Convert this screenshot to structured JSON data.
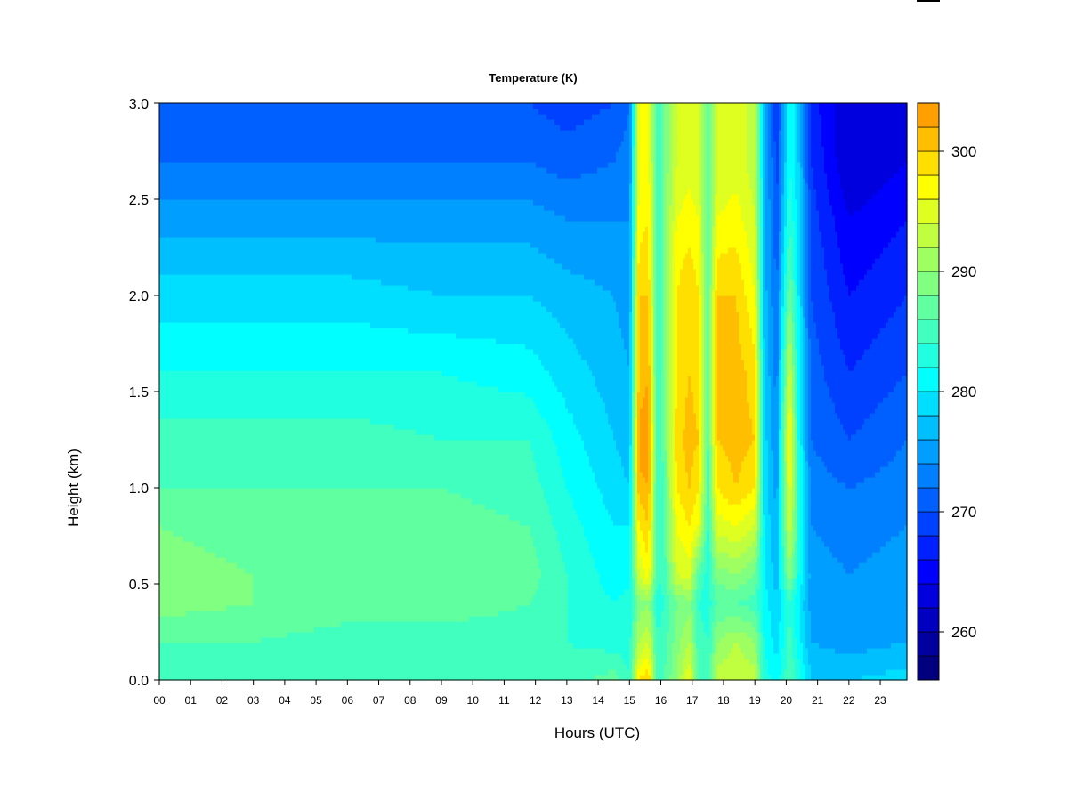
{
  "chart_data": {
    "type": "heatmap",
    "title": "Temperature (K)",
    "xlabel": "Hours (UTC)",
    "ylabel": "Height (km)",
    "x_ticks": [
      "00",
      "01",
      "02",
      "03",
      "04",
      "05",
      "06",
      "07",
      "08",
      "09",
      "10",
      "11",
      "12",
      "13",
      "14",
      "15",
      "16",
      "17",
      "18",
      "19",
      "20",
      "21",
      "22",
      "23"
    ],
    "x_range_hours": [
      0,
      23.85
    ],
    "y_ticks": [
      0.0,
      0.5,
      1.0,
      1.5,
      2.0,
      2.5,
      3.0
    ],
    "y_tick_labels": [
      "0.0",
      "0.5",
      "1.0",
      "1.5",
      "2.0",
      "2.5",
      "3.0"
    ],
    "ylim": [
      0.0,
      3.0
    ],
    "colorbar": {
      "range": [
        256,
        304
      ],
      "level_step": 2,
      "ticks": [
        260,
        270,
        280,
        290,
        300
      ],
      "tick_labels": [
        "260",
        "270",
        "280",
        "290",
        "300"
      ],
      "colors": [
        "#00007f",
        "#00009f",
        "#0000bf",
        "#0000df",
        "#0000ff",
        "#0020ff",
        "#0040ff",
        "#0060ff",
        "#0080ff",
        "#009fff",
        "#00bfff",
        "#00dfff",
        "#00ffff",
        "#20ffdf",
        "#40ffbf",
        "#60ff9f",
        "#80ff80",
        "#9fff60",
        "#bfff40",
        "#dfff20",
        "#ffff00",
        "#ffdf00",
        "#ffbf00",
        "#ff9f00",
        "#ff8000",
        "#ff6000",
        "#ff4000",
        "#ff2000",
        "#ff0000",
        "#df0000",
        "#bf0000",
        "#9f0000",
        "#7f0000"
      ]
    },
    "profile_heights_km": [
      0.0,
      0.2,
      0.4,
      0.55,
      0.8,
      1.0,
      1.25,
      1.6,
      2.0,
      2.4,
      2.7,
      3.0
    ],
    "profiles_K": [
      {
        "hour": 0.0,
        "values_K": [
          285,
          286,
          289,
          289,
          288,
          286,
          285,
          282,
          279,
          275,
          272,
          270
        ]
      },
      {
        "hour": 3.0,
        "values_K": [
          285,
          286,
          288,
          288,
          287,
          286,
          285,
          282,
          279,
          275,
          272,
          270
        ]
      },
      {
        "hour": 6.0,
        "values_K": [
          285,
          285,
          287,
          288,
          287,
          286,
          285,
          282,
          279,
          275,
          272,
          270
        ]
      },
      {
        "hour": 9.0,
        "values_K": [
          284,
          285,
          287,
          288,
          287,
          286,
          284,
          282,
          278,
          275,
          272,
          270
        ]
      },
      {
        "hour": 11.8,
        "values_K": [
          284,
          285,
          286,
          287,
          286,
          285,
          284,
          281,
          278,
          275,
          272,
          270
        ]
      },
      {
        "hour": 13.0,
        "values_K": [
          285,
          284,
          284,
          284,
          283,
          282,
          281,
          279,
          277,
          274,
          271,
          269
        ]
      },
      {
        "hour": 14.5,
        "values_K": [
          287,
          283,
          282,
          281,
          280,
          279,
          278,
          277,
          276,
          274,
          272,
          270
        ]
      },
      {
        "hour": 15.0,
        "values_K": [
          284,
          283,
          283,
          281,
          280,
          278,
          277,
          276,
          275,
          274,
          273,
          272
        ]
      },
      {
        "hour": 15.3,
        "values_K": [
          298,
          292,
          289,
          294,
          298,
          301,
          303,
          300,
          300,
          297,
          296,
          296
        ]
      },
      {
        "hour": 15.6,
        "values_K": [
          300,
          294,
          290,
          297,
          300,
          302,
          304,
          302,
          300,
          298,
          297,
          297
        ]
      },
      {
        "hour": 15.9,
        "values_K": [
          285,
          284,
          283,
          284,
          284,
          284,
          284,
          284,
          284,
          284,
          284,
          284
        ]
      },
      {
        "hour": 16.1,
        "values_K": [
          286,
          285,
          284,
          285,
          285,
          286,
          287,
          288,
          288,
          288,
          288,
          288
        ]
      },
      {
        "hour": 16.5,
        "values_K": [
          290,
          289,
          288,
          294,
          296,
          298,
          299,
          298,
          298,
          296,
          294,
          294
        ]
      },
      {
        "hour": 16.9,
        "values_K": [
          296,
          292,
          289,
          295,
          298,
          300,
          301,
          300,
          300,
          297,
          295,
          295
        ]
      },
      {
        "hour": 17.2,
        "values_K": [
          286,
          285,
          284,
          286,
          296,
          298,
          300,
          299,
          298,
          296,
          294,
          294
        ]
      },
      {
        "hour": 17.5,
        "values_K": [
          284,
          284,
          283,
          283,
          284,
          285,
          286,
          286,
          286,
          286,
          286,
          286
        ]
      },
      {
        "hour": 17.8,
        "values_K": [
          293,
          290,
          286,
          289,
          295,
          298,
          300,
          300,
          300,
          296,
          294,
          294
        ]
      },
      {
        "hour": 18.4,
        "values_K": [
          294,
          292,
          286,
          290,
          296,
          300,
          301,
          301,
          300,
          297,
          295,
          295
        ]
      },
      {
        "hour": 19.0,
        "values_K": [
          293,
          290,
          285,
          288,
          294,
          298,
          300,
          299,
          296,
          294,
          293,
          293
        ]
      },
      {
        "hour": 19.3,
        "values_K": [
          283,
          282,
          281,
          280,
          280,
          279,
          279,
          278,
          277,
          277,
          277,
          277
        ]
      },
      {
        "hour": 19.7,
        "values_K": [
          281,
          279,
          278,
          277,
          276,
          275,
          274,
          273,
          272,
          270,
          269,
          268
        ]
      },
      {
        "hour": 20.1,
        "values_K": [
          286,
          285,
          284,
          290,
          294,
          296,
          298,
          294,
          288,
          284,
          282,
          282
        ]
      },
      {
        "hour": 20.4,
        "values_K": [
          283,
          281,
          280,
          282,
          284,
          283,
          282,
          281,
          280,
          279,
          278,
          278
        ]
      },
      {
        "hour": 20.8,
        "values_K": [
          278,
          276,
          275,
          275,
          274,
          273,
          272,
          271,
          270,
          269,
          268,
          267
        ]
      },
      {
        "hour": 22.0,
        "values_K": [
          278,
          275,
          274,
          274,
          273,
          272,
          270,
          268,
          266,
          264,
          262,
          262
        ]
      },
      {
        "hour": 23.85,
        "values_K": [
          279,
          276,
          275,
          275,
          274,
          273,
          272,
          270,
          268,
          266,
          264,
          262
        ]
      }
    ]
  }
}
